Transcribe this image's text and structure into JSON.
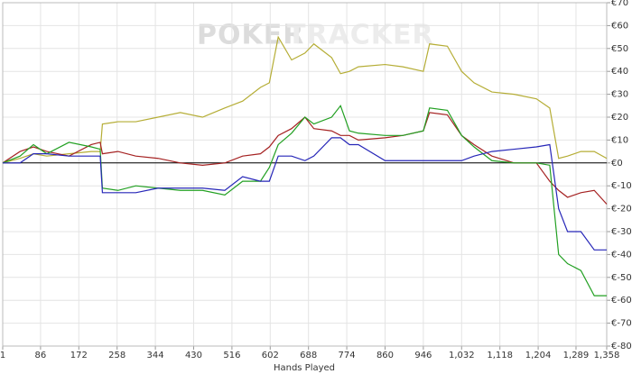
{
  "chart_data": {
    "type": "line",
    "watermark": [
      "POKER",
      "TRACKER"
    ],
    "xlabel": "Hands Played",
    "x": [
      1,
      40,
      70,
      100,
      150,
      200,
      220,
      225,
      260,
      300,
      350,
      400,
      450,
      500,
      540,
      580,
      600,
      620,
      650,
      680,
      700,
      740,
      760,
      780,
      800,
      860,
      900,
      946,
      960,
      1000,
      1032,
      1060,
      1100,
      1150,
      1200,
      1230,
      1250,
      1270,
      1300,
      1330,
      1358
    ],
    "series": [
      {
        "color": "#b5ad35",
        "values": [
          0,
          2,
          4,
          3,
          4,
          5,
          5,
          17,
          18,
          18,
          20,
          22,
          20,
          24,
          27,
          33,
          35,
          55,
          45,
          48,
          52,
          46,
          39,
          40,
          42,
          43,
          42,
          40,
          52,
          51,
          40,
          35,
          31,
          30,
          28,
          24,
          2,
          3,
          5,
          5,
          2
        ]
      },
      {
        "color": "#a52222",
        "values": [
          0,
          5,
          7,
          5,
          3,
          8,
          9,
          4,
          5,
          3,
          2,
          0,
          -1,
          0,
          3,
          4,
          7,
          12,
          15,
          20,
          15,
          14,
          12,
          12,
          10,
          11,
          12,
          14,
          22,
          21,
          12,
          8,
          3,
          0,
          0,
          -8,
          -12,
          -15,
          -13,
          -12,
          -18
        ]
      },
      {
        "color": "#22a022",
        "values": [
          0,
          3,
          8,
          4,
          9,
          7,
          6,
          -11,
          -12,
          -10,
          -11,
          -12,
          -12,
          -14,
          -8,
          -8,
          -2,
          8,
          13,
          20,
          17,
          20,
          25,
          14,
          13,
          12,
          12,
          14,
          24,
          23,
          12,
          7,
          1,
          0,
          0,
          -1,
          -40,
          -44,
          -47,
          -58,
          -58
        ]
      },
      {
        "color": "#2626b8",
        "values": [
          0,
          0,
          4,
          4,
          3,
          3,
          3,
          -13,
          -13,
          -13,
          -11,
          -11,
          -11,
          -12,
          -6,
          -8,
          -8,
          3,
          3,
          1,
          3,
          11,
          11,
          8,
          8,
          1,
          1,
          1,
          1,
          1,
          1,
          3,
          5,
          6,
          7,
          8,
          -20,
          -30,
          -30,
          -38,
          -38
        ]
      }
    ],
    "xlim": [
      1,
      1358
    ],
    "xticks": [
      1,
      86,
      172,
      258,
      344,
      430,
      516,
      602,
      688,
      774,
      860,
      946,
      {
        "value": 1032,
        "label": "1,032"
      },
      {
        "value": 1118,
        "label": "1,118"
      },
      {
        "value": 1204,
        "label": "1,204"
      },
      {
        "value": 1289,
        "label": "1,289"
      },
      {
        "value": 1358,
        "label": "1,358"
      }
    ],
    "ylim": [
      -80,
      70
    ],
    "yticks": [
      {
        "value": 70,
        "label": "€70"
      },
      {
        "value": 60,
        "label": "€60"
      },
      {
        "value": 50,
        "label": "€50"
      },
      {
        "value": 40,
        "label": "€40"
      },
      {
        "value": 30,
        "label": "€30"
      },
      {
        "value": 20,
        "label": "€20"
      },
      {
        "value": 10,
        "label": "€10"
      },
      {
        "value": 0,
        "label": "€0"
      },
      {
        "value": -10,
        "label": "€-10"
      },
      {
        "value": -20,
        "label": "€-20"
      },
      {
        "value": -30,
        "label": "€-30"
      },
      {
        "value": -40,
        "label": "€-40"
      },
      {
        "value": -50,
        "label": "€-50"
      },
      {
        "value": -60,
        "label": "€-60"
      },
      {
        "value": -70,
        "label": "€-70"
      },
      {
        "value": -80,
        "label": "€-80"
      }
    ],
    "grid": true
  }
}
